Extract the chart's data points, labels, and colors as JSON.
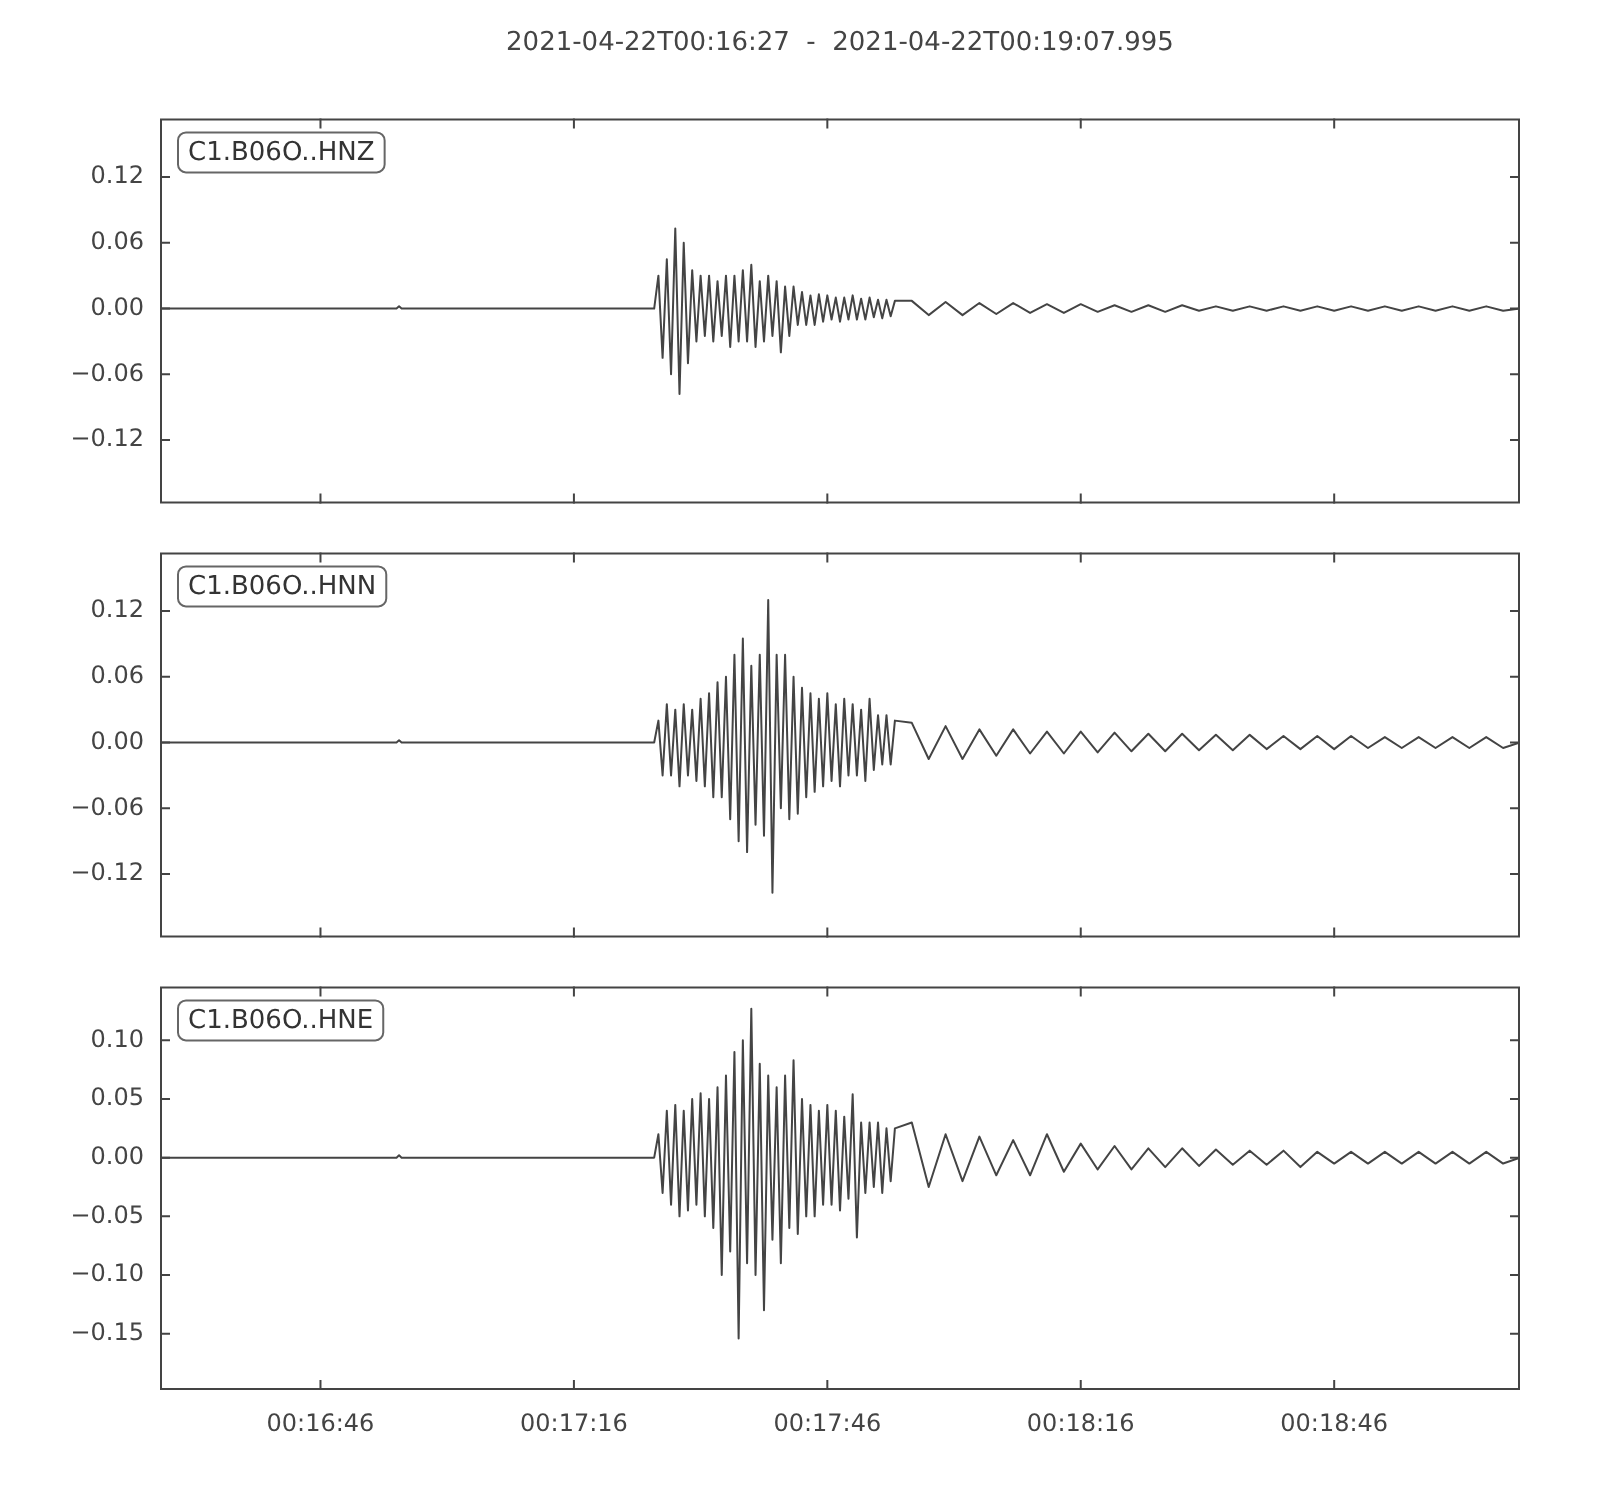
{
  "chart_data": [
    {
      "type": "line",
      "title": "2021-04-22T00:16:27  -  2021-04-22T00:19:07.995",
      "annotations": [
        "C1.B06O..HNZ"
      ],
      "legend": false,
      "grid": false,
      "tick_labels": "y",
      "marker": "none",
      "line_style": "solid",
      "x": [
        0.274167,
        0.281944,
        0.282028,
        0.282111,
        0.290417,
        0.290556,
        0.290694,
        0.290833,
        0.290972,
        0.291111,
        0.29125,
        0.291389,
        0.291528,
        0.291667,
        0.291806,
        0.291944,
        0.292083,
        0.292222,
        0.292361,
        0.2925,
        0.292639,
        0.292778,
        0.292917,
        0.293056,
        0.293194,
        0.293333,
        0.293472,
        0.293611,
        0.29375,
        0.293889,
        0.294028,
        0.294167,
        0.294306,
        0.294444,
        0.294583,
        0.294722,
        0.294861,
        0.295,
        0.295139,
        0.295278,
        0.295417,
        0.295556,
        0.295694,
        0.295833,
        0.295972,
        0.296111,
        0.29625,
        0.296389,
        0.296528,
        0.296667,
        0.296806,
        0.296944,
        0.297083,
        0.297222,
        0.297361,
        0.2975,
        0.297639,
        0.297778,
        0.297917,
        0.298056,
        0.298194,
        0.298333,
        0.298889,
        0.299444,
        0.3,
        0.300556,
        0.301111,
        0.301667,
        0.302222,
        0.302778,
        0.303333,
        0.303889,
        0.304444,
        0.305,
        0.305556,
        0.306111,
        0.306667,
        0.307222,
        0.307778,
        0.308333,
        0.308889,
        0.309444,
        0.31,
        0.310556,
        0.311111,
        0.311667,
        0.312222,
        0.312778,
        0.313333,
        0.313889,
        0.314444,
        0.315,
        0.315556,
        0.316111,
        0.316667,
        0.317222,
        0.317778,
        0.318333,
        0.318888
      ],
      "series": [
        {
          "color": "#444444",
          "values": [
            0,
            0,
            0.002,
            0,
            0,
            0.03,
            -0.045,
            0.045,
            -0.06,
            0.073,
            -0.078,
            0.06,
            -0.05,
            0.035,
            -0.03,
            0.03,
            -0.025,
            0.03,
            -0.03,
            0.025,
            -0.025,
            0.03,
            -0.035,
            0.03,
            -0.03,
            0.035,
            -0.03,
            0.04,
            -0.035,
            0.025,
            -0.03,
            0.03,
            -0.025,
            0.025,
            -0.04,
            0.02,
            -0.025,
            0.02,
            -0.015,
            0.015,
            -0.015,
            0.012,
            -0.015,
            0.013,
            -0.012,
            0.012,
            -0.01,
            0.01,
            -0.012,
            0.01,
            -0.01,
            0.012,
            -0.01,
            0.009,
            -0.01,
            0.01,
            -0.008,
            0.008,
            -0.009,
            0.008,
            -0.007,
            0.007,
            0.007,
            -0.006,
            0.006,
            -0.006,
            0.005,
            -0.005,
            0.005,
            -0.004,
            0.004,
            -0.004,
            0.004,
            -0.003,
            0.003,
            -0.003,
            0.003,
            -0.003,
            0.003,
            -0.002,
            0.002,
            -0.002,
            0.002,
            -0.002,
            0.002,
            -0.002,
            0.002,
            -0.002,
            0.002,
            -0.002,
            0.002,
            -0.002,
            0.002,
            -0.002,
            0.002,
            -0.002,
            0.002,
            -0.002,
            0
          ]
        }
      ],
      "xlim": [
        0.274167,
        0.318888
      ],
      "xticks": [
        {
          "value": 0.279444,
          "label": null
        },
        {
          "value": 0.287778,
          "label": null
        },
        {
          "value": 0.296111,
          "label": null
        },
        {
          "value": 0.304444,
          "label": null
        },
        {
          "value": 0.312778,
          "label": null
        }
      ],
      "ylim": [
        -0.178,
        0.1735
      ],
      "yticks": [
        {
          "value": -0.12,
          "label": "−0.12"
        },
        {
          "value": -0.06,
          "label": "−0.06"
        },
        {
          "value": 0,
          "label": "0.00"
        },
        {
          "value": 0.06,
          "label": "0.06"
        },
        {
          "value": 0.12,
          "label": "0.12"
        }
      ]
    },
    {
      "type": "line",
      "annotations": [
        "C1.B06O..HNN"
      ],
      "legend": false,
      "grid": false,
      "tick_labels": "y",
      "marker": "none",
      "line_style": "solid",
      "x": [
        0.274167,
        0.281944,
        0.282028,
        0.282111,
        0.290417,
        0.290556,
        0.290694,
        0.290833,
        0.290972,
        0.291111,
        0.29125,
        0.291389,
        0.291528,
        0.291667,
        0.291806,
        0.291944,
        0.292083,
        0.292222,
        0.292361,
        0.2925,
        0.292639,
        0.292778,
        0.292917,
        0.293056,
        0.293194,
        0.293333,
        0.293472,
        0.293611,
        0.29375,
        0.293889,
        0.294028,
        0.294167,
        0.294306,
        0.294444,
        0.294583,
        0.294722,
        0.294861,
        0.295,
        0.295139,
        0.295278,
        0.295417,
        0.295556,
        0.295694,
        0.295833,
        0.295972,
        0.296111,
        0.29625,
        0.296389,
        0.296528,
        0.296667,
        0.296806,
        0.296944,
        0.297083,
        0.297222,
        0.297361,
        0.2975,
        0.297639,
        0.297778,
        0.297917,
        0.298056,
        0.298194,
        0.298333,
        0.298889,
        0.299444,
        0.3,
        0.300556,
        0.301111,
        0.301667,
        0.302222,
        0.302778,
        0.303333,
        0.303889,
        0.304444,
        0.305,
        0.305556,
        0.306111,
        0.306667,
        0.307222,
        0.307778,
        0.308333,
        0.308889,
        0.309444,
        0.31,
        0.310556,
        0.311111,
        0.311667,
        0.312222,
        0.312778,
        0.313333,
        0.313889,
        0.314444,
        0.315,
        0.315556,
        0.316111,
        0.316667,
        0.317222,
        0.317778,
        0.318333,
        0.318888
      ],
      "series": [
        {
          "color": "#444444",
          "values": [
            0,
            0,
            0.002,
            0,
            0,
            0.02,
            -0.03,
            0.035,
            -0.03,
            0.03,
            -0.04,
            0.035,
            -0.03,
            0.03,
            -0.035,
            0.04,
            -0.04,
            0.045,
            -0.05,
            0.055,
            -0.05,
            0.06,
            -0.07,
            0.08,
            -0.09,
            0.095,
            -0.1,
            0.07,
            -0.075,
            0.08,
            -0.085,
            0.13,
            -0.137,
            0.08,
            -0.06,
            0.08,
            -0.07,
            0.06,
            -0.065,
            0.05,
            -0.05,
            0.045,
            -0.045,
            0.04,
            -0.04,
            0.045,
            -0.035,
            0.035,
            -0.04,
            0.04,
            -0.03,
            0.035,
            -0.03,
            0.03,
            -0.035,
            0.04,
            -0.025,
            0.025,
            -0.02,
            0.025,
            -0.02,
            0.02,
            0.018,
            -0.015,
            0.015,
            -0.015,
            0.012,
            -0.012,
            0.012,
            -0.01,
            0.01,
            -0.01,
            0.01,
            -0.009,
            0.009,
            -0.008,
            0.008,
            -0.008,
            0.008,
            -0.007,
            0.007,
            -0.007,
            0.007,
            -0.006,
            0.006,
            -0.006,
            0.006,
            -0.006,
            0.006,
            -0.005,
            0.005,
            -0.005,
            0.005,
            -0.005,
            0.005,
            -0.005,
            0.005,
            -0.005,
            0
          ]
        }
      ],
      "xlim": [
        0.274167,
        0.318888
      ],
      "xticks": [
        {
          "value": 0.279444,
          "label": null
        },
        {
          "value": 0.287778,
          "label": null
        },
        {
          "value": 0.296111,
          "label": null
        },
        {
          "value": 0.304444,
          "label": null
        },
        {
          "value": 0.312778,
          "label": null
        }
      ],
      "ylim": [
        -0.178,
        0.1735
      ],
      "yticks": [
        {
          "value": -0.12,
          "label": "−0.12"
        },
        {
          "value": -0.06,
          "label": "−0.06"
        },
        {
          "value": 0,
          "label": "0.00"
        },
        {
          "value": 0.06,
          "label": "0.06"
        },
        {
          "value": 0.12,
          "label": "0.12"
        }
      ]
    },
    {
      "type": "line",
      "annotations": [
        "C1.B06O..HNE"
      ],
      "legend": false,
      "grid": false,
      "marker": "none",
      "line_style": "solid",
      "x": [
        0.274167,
        0.281944,
        0.282028,
        0.282111,
        0.290417,
        0.290556,
        0.290694,
        0.290833,
        0.290972,
        0.291111,
        0.29125,
        0.291389,
        0.291528,
        0.291667,
        0.291806,
        0.291944,
        0.292083,
        0.292222,
        0.292361,
        0.2925,
        0.292639,
        0.292778,
        0.292917,
        0.293056,
        0.293194,
        0.293333,
        0.293472,
        0.293611,
        0.29375,
        0.293889,
        0.294028,
        0.294167,
        0.294306,
        0.294444,
        0.294583,
        0.294722,
        0.294861,
        0.295,
        0.295139,
        0.295278,
        0.295417,
        0.295556,
        0.295694,
        0.295833,
        0.295972,
        0.296111,
        0.29625,
        0.296389,
        0.296528,
        0.296667,
        0.296806,
        0.296944,
        0.297083,
        0.297222,
        0.297361,
        0.2975,
        0.297639,
        0.297778,
        0.297917,
        0.298056,
        0.298194,
        0.298333,
        0.298889,
        0.299444,
        0.3,
        0.300556,
        0.301111,
        0.301667,
        0.302222,
        0.302778,
        0.303333,
        0.303889,
        0.304444,
        0.305,
        0.305556,
        0.306111,
        0.306667,
        0.307222,
        0.307778,
        0.308333,
        0.308889,
        0.309444,
        0.31,
        0.310556,
        0.311111,
        0.311667,
        0.312222,
        0.312778,
        0.313333,
        0.313889,
        0.314444,
        0.315,
        0.315556,
        0.316111,
        0.316667,
        0.317222,
        0.317778,
        0.318333,
        0.318888
      ],
      "series": [
        {
          "color": "#444444",
          "values": [
            0,
            0,
            0.002,
            0,
            0,
            0.02,
            -0.03,
            0.04,
            -0.04,
            0.045,
            -0.05,
            0.04,
            -0.045,
            0.05,
            -0.04,
            0.055,
            -0.05,
            0.05,
            -0.06,
            0.06,
            -0.1,
            0.07,
            -0.08,
            0.09,
            -0.154,
            0.1,
            -0.09,
            0.127,
            -0.1,
            0.08,
            -0.13,
            0.07,
            -0.07,
            0.06,
            -0.09,
            0.07,
            -0.06,
            0.083,
            -0.065,
            0.05,
            -0.05,
            0.045,
            -0.05,
            0.04,
            -0.04,
            0.045,
            -0.04,
            0.04,
            -0.045,
            0.035,
            -0.035,
            0.054,
            -0.068,
            0.03,
            -0.03,
            0.03,
            -0.025,
            0.03,
            -0.03,
            0.025,
            -0.02,
            0.025,
            0.03,
            -0.025,
            0.02,
            -0.02,
            0.018,
            -0.015,
            0.015,
            -0.015,
            0.02,
            -0.012,
            0.012,
            -0.01,
            0.01,
            -0.01,
            0.008,
            -0.008,
            0.008,
            -0.007,
            0.007,
            -0.006,
            0.006,
            -0.006,
            0.006,
            -0.008,
            0.005,
            -0.005,
            0.005,
            -0.005,
            0.005,
            -0.005,
            0.005,
            -0.005,
            0.005,
            -0.005,
            0.005,
            -0.005,
            0
          ]
        }
      ],
      "xlim": [
        0.274167,
        0.318888
      ],
      "xticks": [
        {
          "value": 0.279444,
          "label": "00:16:46"
        },
        {
          "value": 0.287778,
          "label": "00:17:16"
        },
        {
          "value": 0.296111,
          "label": "00:17:46"
        },
        {
          "value": 0.304444,
          "label": "00:18:16"
        },
        {
          "value": 0.312778,
          "label": "00:18:46"
        }
      ],
      "ylim": [
        -0.198,
        0.146
      ],
      "yticks": [
        {
          "value": -0.15,
          "label": "−0.15"
        },
        {
          "value": -0.1,
          "label": "−0.10"
        },
        {
          "value": -0.05,
          "label": "−0.05"
        },
        {
          "value": 0,
          "label": "0.00"
        },
        {
          "value": 0.05,
          "label": "0.05"
        },
        {
          "value": 0.1,
          "label": "0.10"
        }
      ]
    }
  ]
}
